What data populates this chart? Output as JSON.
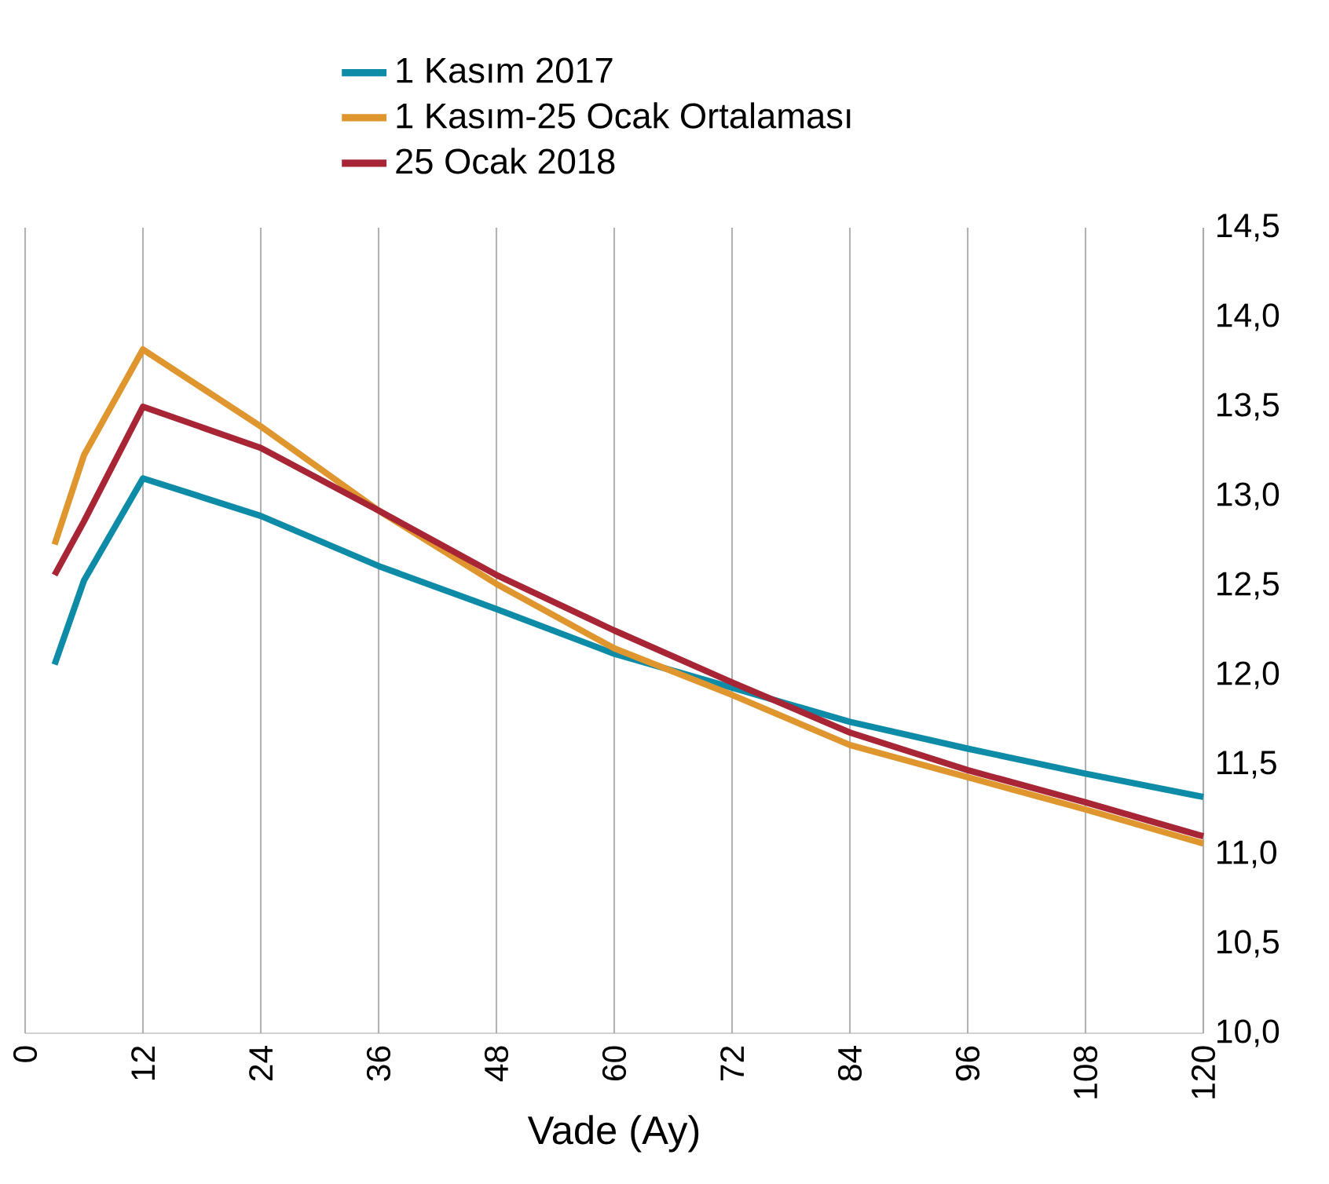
{
  "chart_data": {
    "type": "line",
    "xlabel": "Vade (Ay)",
    "x": [
      3,
      6,
      12,
      24,
      36,
      48,
      60,
      72,
      84,
      96,
      108,
      120
    ],
    "series": [
      {
        "name": "1 Kasım 2017",
        "color": "#0e8ba6",
        "values": [
          12.06,
          12.53,
          13.1,
          12.89,
          12.61,
          12.37,
          12.12,
          11.93,
          11.74,
          11.59,
          11.45,
          11.32
        ]
      },
      {
        "name": "1 Kasım-25 Ocak Ortalaması",
        "color": "#e0962e",
        "values": [
          12.73,
          13.23,
          13.82,
          13.39,
          12.92,
          12.51,
          12.15,
          11.89,
          11.61,
          11.43,
          11.25,
          11.06
        ]
      },
      {
        "name": "25 Ocak 2018",
        "color": "#a82535",
        "values": [
          12.56,
          12.86,
          13.5,
          13.27,
          12.92,
          12.56,
          12.25,
          11.96,
          11.68,
          11.47,
          11.29,
          11.1
        ]
      }
    ],
    "xlim": [
      0,
      120
    ],
    "xticks": [
      0,
      12,
      24,
      36,
      48,
      60,
      72,
      84,
      96,
      108,
      120
    ],
    "ylim": [
      10,
      14.5
    ],
    "yticks": [
      {
        "value": 10,
        "label": "10,0"
      },
      {
        "value": 10.5,
        "label": "10,5"
      },
      {
        "value": 11,
        "label": "11,0"
      },
      {
        "value": 11.5,
        "label": "11,5"
      },
      {
        "value": 12,
        "label": "12,0"
      },
      {
        "value": 12.5,
        "label": "12,5"
      },
      {
        "value": 13,
        "label": "13,0"
      },
      {
        "value": 13.5,
        "label": "13,5"
      },
      {
        "value": 14,
        "label": "14,0"
      },
      {
        "value": 14.5,
        "label": "14,5"
      }
    ],
    "grid": "x",
    "legend": "top",
    "marker": "none",
    "line_style": "solid"
  }
}
